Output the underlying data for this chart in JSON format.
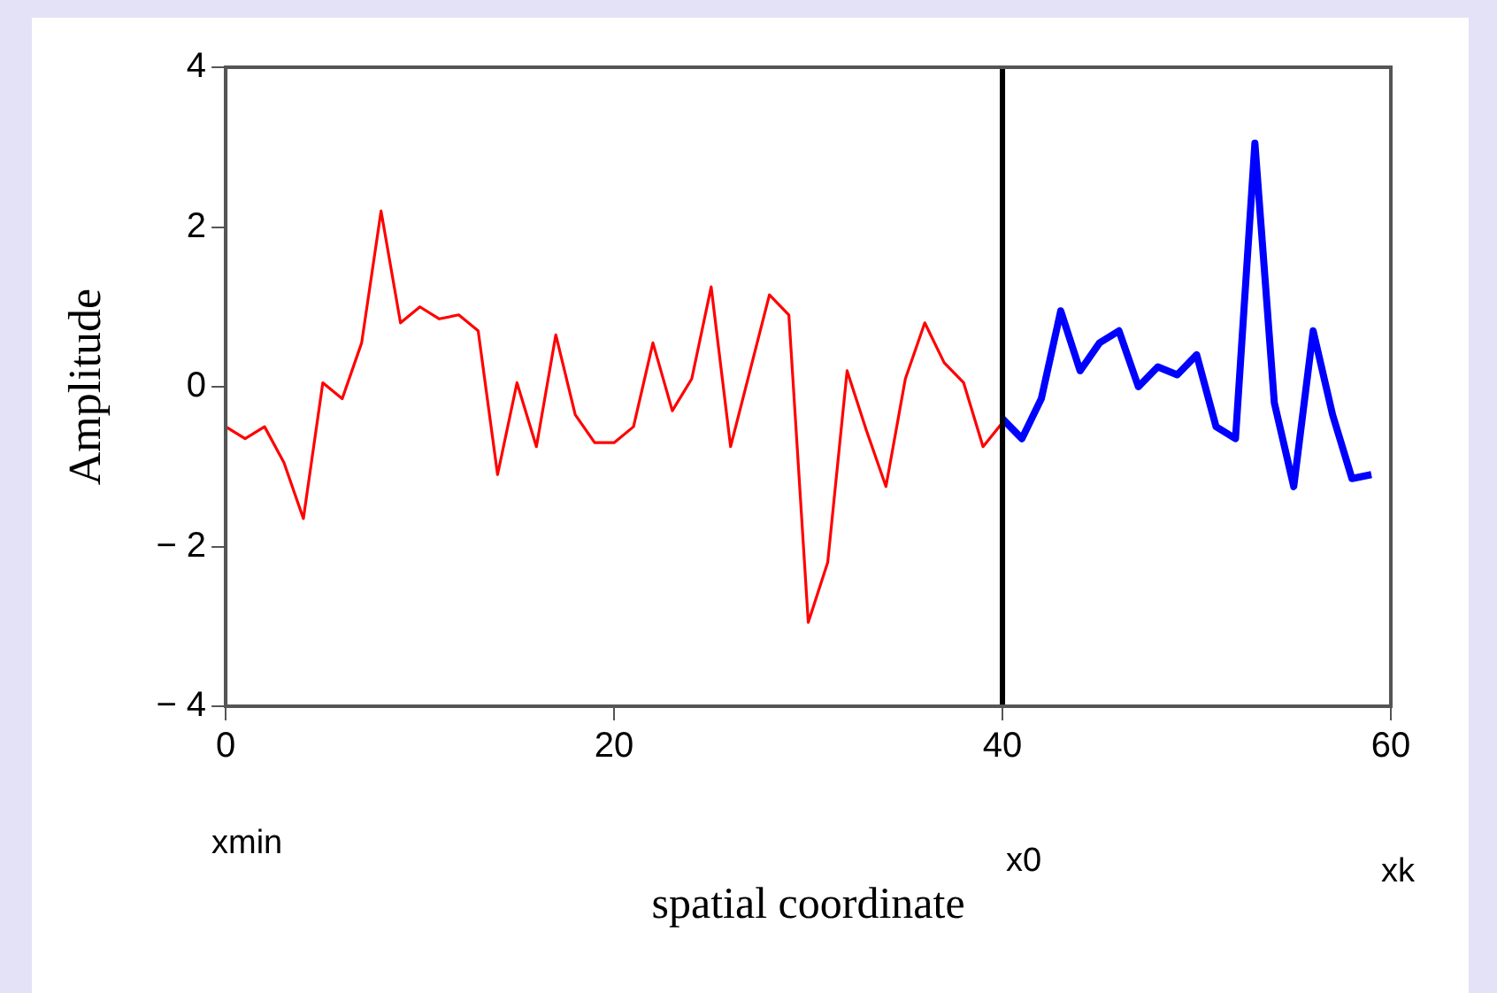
{
  "chart_data": {
    "type": "line",
    "xlabel": "spatial coordinate",
    "ylabel": "Amplitude",
    "xlim": [
      0,
      60
    ],
    "xticks": [
      0,
      20,
      40,
      60
    ],
    "ylim": [
      -4,
      4
    ],
    "yticks": [
      -4,
      -2,
      0,
      2,
      4
    ],
    "grid": false,
    "legend": false,
    "marker": "none",
    "line_style": "solid",
    "series": [
      {
        "color": "#ff0000",
        "x": [
          0,
          1,
          2,
          3,
          4,
          5,
          6,
          7,
          8,
          9,
          10,
          11,
          12,
          13,
          14,
          15,
          16,
          17,
          18,
          19,
          20,
          21,
          22,
          23,
          24,
          25,
          26,
          27,
          28,
          29,
          30,
          31,
          32,
          33,
          34,
          35,
          36,
          37,
          38,
          39,
          40
        ],
        "values": [
          -0.5,
          -0.65,
          -0.5,
          -0.95,
          -1.65,
          0.05,
          -0.15,
          0.55,
          2.2,
          0.8,
          1.0,
          0.85,
          0.9,
          0.7,
          -1.1,
          0.05,
          -0.75,
          0.65,
          -0.35,
          -0.7,
          -0.7,
          -0.5,
          0.55,
          -0.3,
          0.1,
          1.25,
          -0.75,
          0.2,
          1.15,
          0.9,
          -2.95,
          -2.2,
          0.2,
          -0.55,
          -1.25,
          0.1,
          0.8,
          0.3,
          0.05,
          -0.75,
          -0.45
        ]
      },
      {
        "color": "#0000ff",
        "x": [
          40,
          41,
          42,
          43,
          44,
          45,
          46,
          47,
          48,
          49,
          50,
          51,
          52,
          53,
          54,
          55,
          56,
          57,
          58,
          59
        ],
        "values": [
          -0.4,
          -0.65,
          -0.15,
          0.95,
          0.2,
          0.55,
          0.7,
          0.0,
          0.25,
          0.15,
          0.4,
          -0.5,
          -0.65,
          3.05,
          -0.2,
          -1.25,
          0.7,
          -0.35,
          -1.15,
          -1.1
        ]
      }
    ],
    "ref_lines": [
      {
        "axis": "x",
        "value": 40,
        "label": "x0",
        "color": "#000000"
      }
    ],
    "annotations": [
      "xmin",
      "xk"
    ]
  }
}
